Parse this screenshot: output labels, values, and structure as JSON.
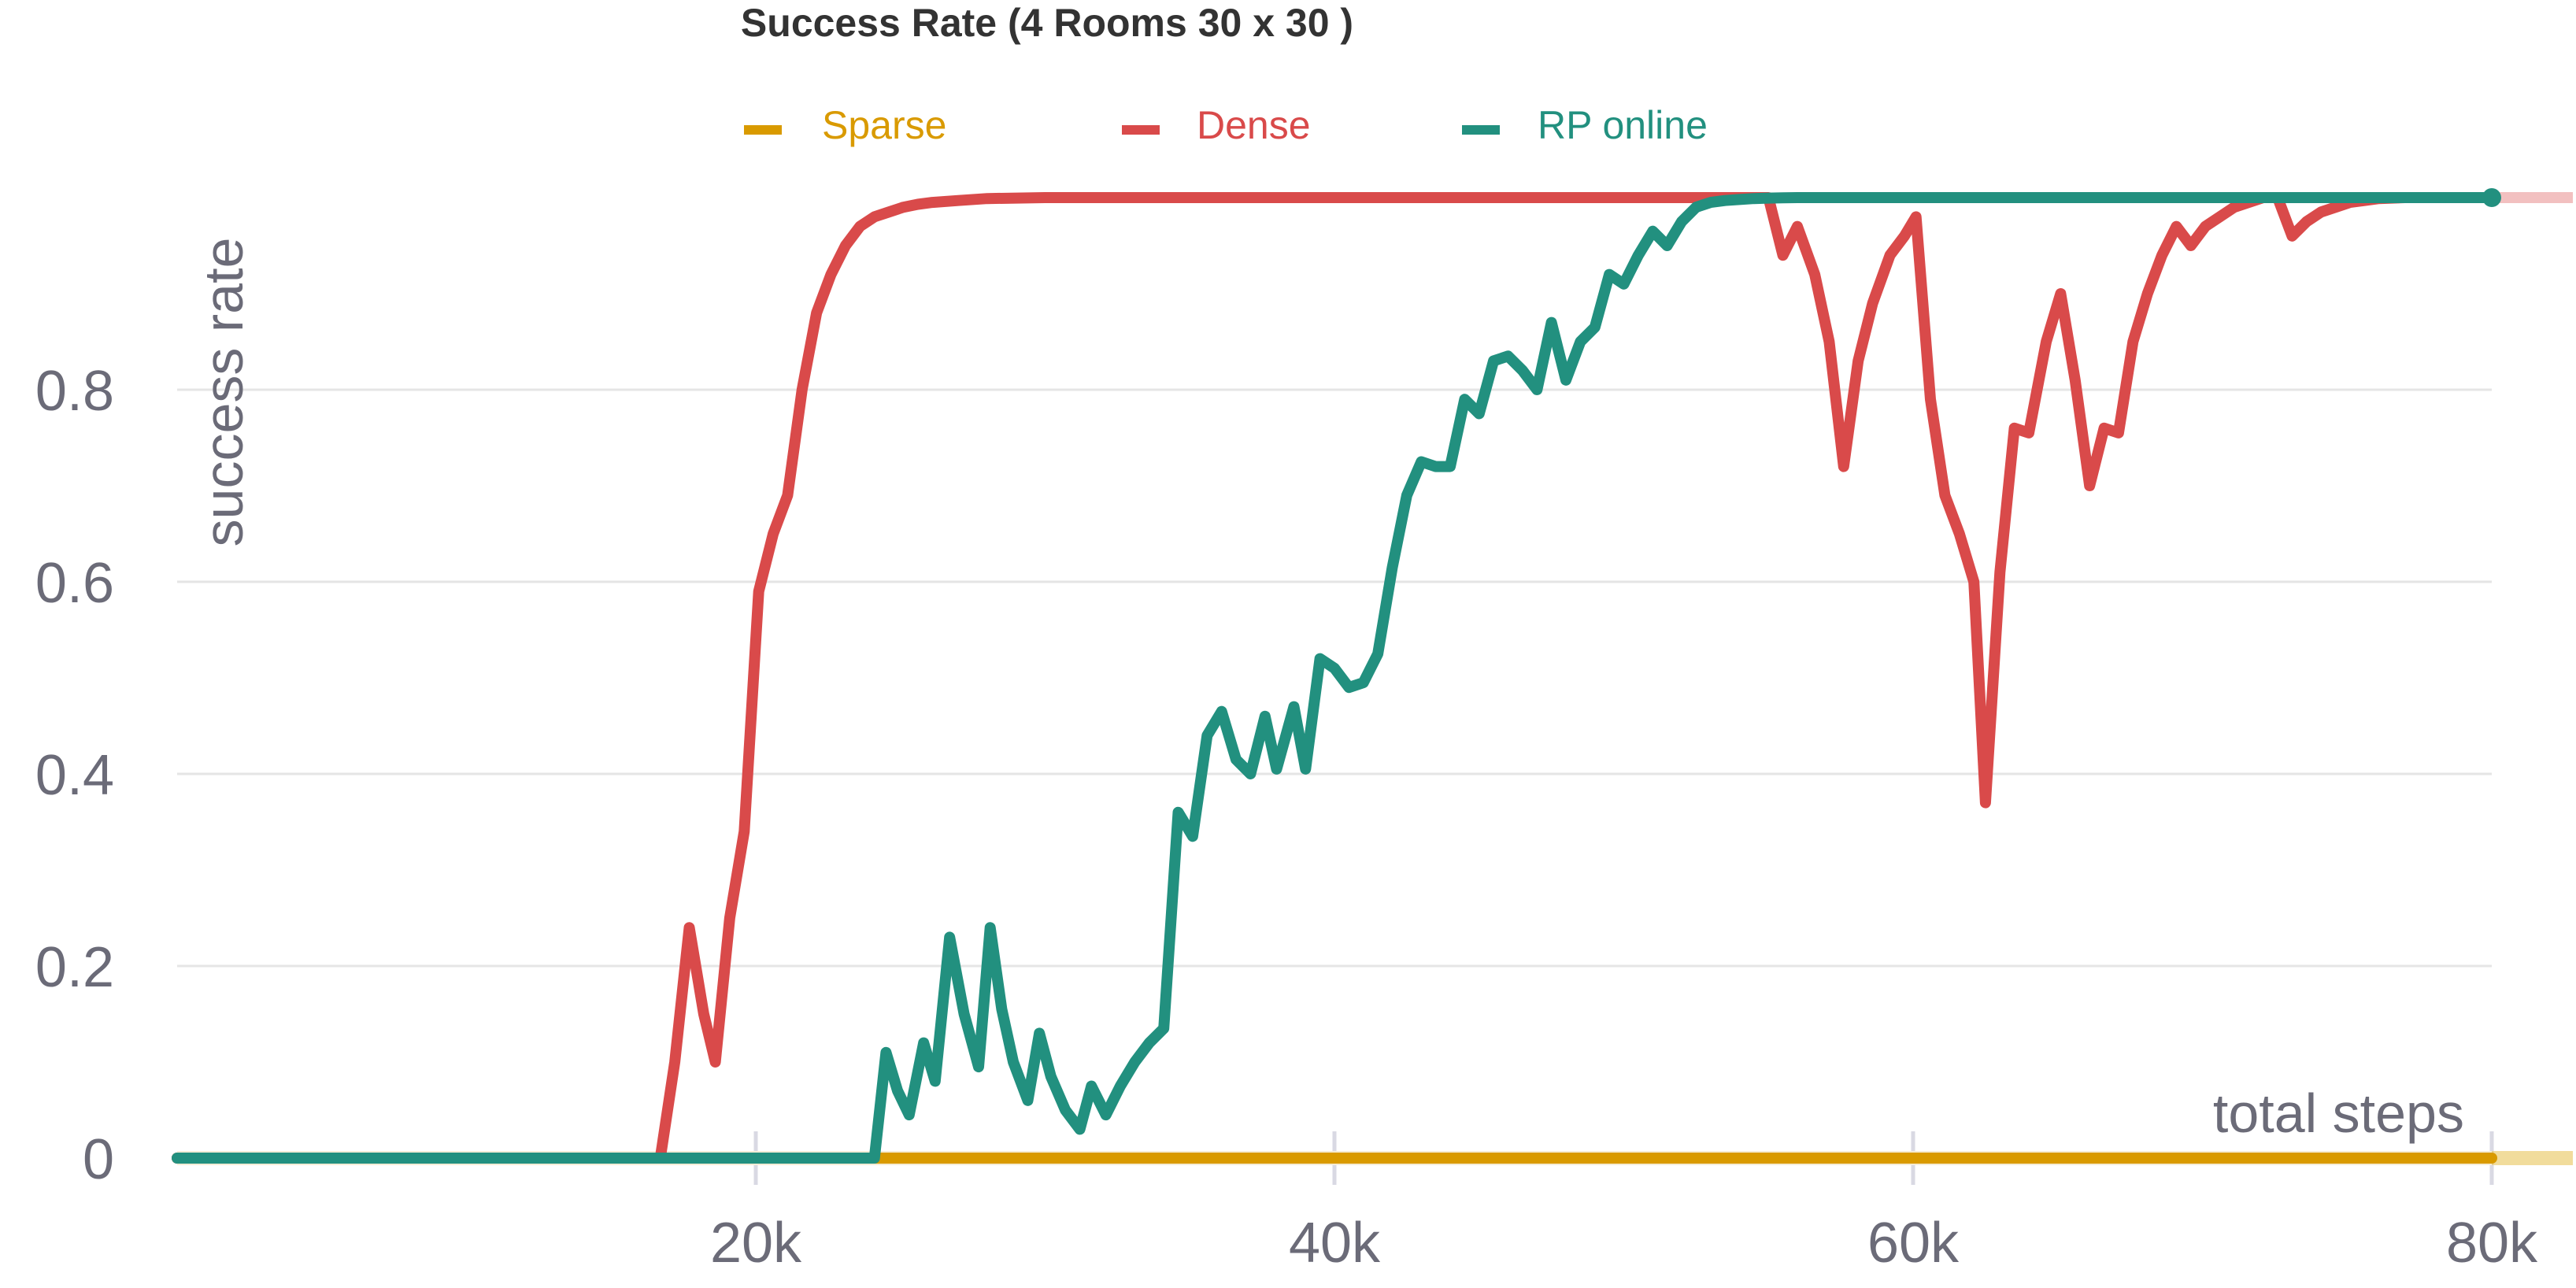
{
  "chart_data": {
    "type": "line",
    "title": "Success Rate (4 Rooms 30 x 30 )",
    "xlabel": "total steps",
    "ylabel": "success rate",
    "xlim": [
      0,
      80000
    ],
    "ylim": [
      0,
      1
    ],
    "xticks": [
      20000,
      40000,
      60000,
      80000
    ],
    "xtick_labels": [
      "20k",
      "40k",
      "60k",
      "80k"
    ],
    "yticks": [
      0,
      0.2,
      0.4,
      0.6,
      0.8
    ],
    "ytick_labels": [
      "0",
      "0.2",
      "0.4",
      "0.6",
      "0.8"
    ],
    "grid": true,
    "legend": "top-center",
    "series": [
      {
        "name": "Sparse",
        "color": "#d99a00",
        "x": [
          0,
          80000
        ],
        "y": [
          0,
          0
        ]
      },
      {
        "name": "Dense",
        "color": "#d94a4a",
        "x": [
          0,
          16700,
          17200,
          17700,
          18200,
          18600,
          19100,
          19600,
          20100,
          20600,
          21100,
          21600,
          22100,
          22600,
          23100,
          23600,
          24100,
          24600,
          25100,
          25600,
          26100,
          27000,
          28000,
          30000,
          55000,
          55500,
          56000,
          56600,
          57100,
          57600,
          58100,
          58600,
          59200,
          59700,
          60100,
          60600,
          61100,
          61600,
          62100,
          62500,
          63000,
          63500,
          64000,
          64600,
          65100,
          65600,
          66100,
          66600,
          67100,
          67600,
          68100,
          68600,
          69100,
          69600,
          70100,
          70600,
          71100,
          71600,
          72100,
          72600,
          73100,
          73600,
          74100,
          74600,
          75100,
          75600,
          76100,
          77000,
          78000,
          79000,
          80000
        ],
        "y": [
          0,
          0,
          0.1,
          0.24,
          0.15,
          0.1,
          0.25,
          0.34,
          0.59,
          0.65,
          0.69,
          0.8,
          0.88,
          0.92,
          0.95,
          0.97,
          0.98,
          0.985,
          0.99,
          0.993,
          0.995,
          0.997,
          0.999,
          1.0,
          1.0,
          0.94,
          0.97,
          0.92,
          0.85,
          0.72,
          0.83,
          0.89,
          0.94,
          0.96,
          0.98,
          0.79,
          0.69,
          0.65,
          0.6,
          0.37,
          0.61,
          0.76,
          0.755,
          0.85,
          0.9,
          0.81,
          0.7,
          0.76,
          0.755,
          0.85,
          0.9,
          0.94,
          0.97,
          0.95,
          0.97,
          0.98,
          0.99,
          0.995,
          1.0,
          1.0,
          0.96,
          0.975,
          0.985,
          0.99,
          0.995,
          0.997,
          0.999,
          1.0,
          1.0,
          1.0,
          1.0
        ]
      },
      {
        "name": "RP online",
        "color": "#22907f",
        "x": [
          0,
          23800,
          24100,
          24500,
          24900,
          25300,
          25800,
          26200,
          26700,
          27200,
          27700,
          28100,
          28500,
          28900,
          29400,
          29800,
          30200,
          30700,
          31200,
          31600,
          32100,
          32600,
          33100,
          33600,
          34100,
          34600,
          35100,
          35600,
          36100,
          36600,
          37100,
          37600,
          38000,
          38600,
          39000,
          39500,
          40000,
          40500,
          41000,
          41500,
          42000,
          42500,
          43000,
          43500,
          44000,
          44500,
          45000,
          45500,
          46000,
          46500,
          47000,
          47500,
          48000,
          48500,
          49000,
          49500,
          50000,
          50500,
          51000,
          51500,
          52000,
          52500,
          53000,
          53500,
          54000,
          54500,
          55000,
          55500,
          56000,
          57000,
          58000,
          60000,
          80000
        ],
        "y": [
          0,
          0,
          0,
          0.11,
          0.07,
          0.045,
          0.12,
          0.08,
          0.23,
          0.15,
          0.095,
          0.24,
          0.155,
          0.1,
          0.06,
          0.13,
          0.085,
          0.05,
          0.03,
          0.075,
          0.045,
          0.075,
          0.1,
          0.12,
          0.135,
          0.36,
          0.335,
          0.44,
          0.465,
          0.415,
          0.4,
          0.46,
          0.405,
          0.47,
          0.405,
          0.52,
          0.51,
          0.49,
          0.495,
          0.525,
          0.615,
          0.69,
          0.725,
          0.72,
          0.72,
          0.79,
          0.775,
          0.83,
          0.835,
          0.82,
          0.8,
          0.87,
          0.81,
          0.85,
          0.865,
          0.92,
          0.91,
          0.94,
          0.965,
          0.95,
          0.975,
          0.99,
          0.995,
          0.997,
          0.998,
          0.999,
          0.9995,
          0.9998,
          1.0,
          1.0,
          1.0,
          1.0,
          1.0
        ]
      }
    ]
  }
}
